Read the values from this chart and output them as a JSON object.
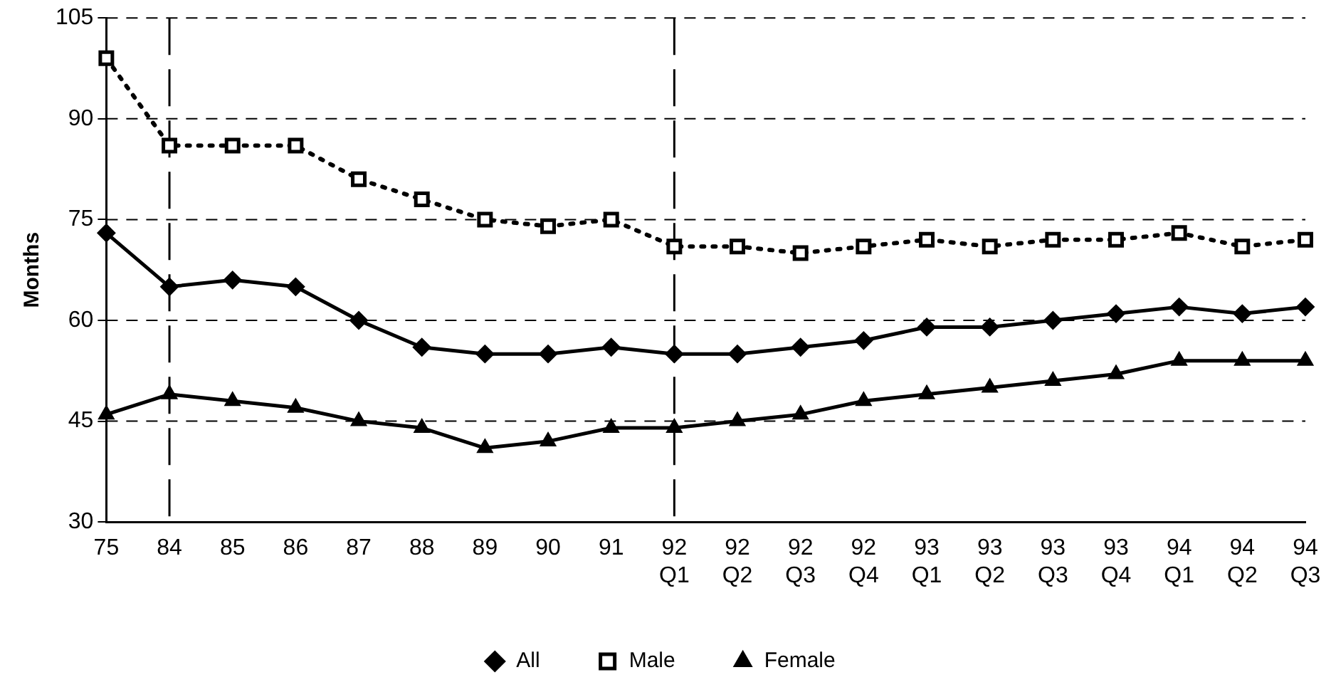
{
  "chart_data": {
    "type": "line",
    "ylabel": "Months",
    "categories": [
      "75",
      "84",
      "85",
      "86",
      "87",
      "88",
      "89",
      "90",
      "91",
      "92 Q1",
      "92 Q2",
      "92 Q3",
      "92 Q4",
      "93 Q1",
      "93 Q2",
      "93 Q3",
      "93 Q4",
      "94 Q1",
      "94 Q2",
      "94 Q3"
    ],
    "series": [
      {
        "name": "All",
        "color": "#000000",
        "marker": "diamond",
        "line_style": "solid",
        "values": [
          73,
          65,
          66,
          65,
          60,
          56,
          55,
          55,
          56,
          55,
          55,
          56,
          57,
          59,
          59,
          60,
          61,
          62,
          61,
          62
        ]
      },
      {
        "name": "Male",
        "color": "#000000",
        "marker": "square",
        "line_style": "dotted",
        "values": [
          99,
          86,
          86,
          86,
          81,
          78,
          75,
          74,
          75,
          71,
          71,
          70,
          71,
          72,
          71,
          72,
          72,
          73,
          71,
          72
        ]
      },
      {
        "name": "Female",
        "color": "#000000",
        "marker": "triangle",
        "line_style": "solid",
        "values": [
          46,
          49,
          48,
          47,
          45,
          44,
          41,
          42,
          44,
          44,
          45,
          46,
          48,
          49,
          50,
          51,
          52,
          54,
          54,
          54
        ]
      }
    ],
    "ylim": [
      30,
      105
    ],
    "yticks": [
      30,
      45,
      60,
      75,
      90,
      105
    ],
    "grid": "y",
    "legend": "bottom",
    "ref_lines": [
      {
        "axis": "x",
        "value": "84",
        "color": "#000000",
        "line_style": "dashed"
      },
      {
        "axis": "x",
        "value": "92 Q1",
        "color": "#000000",
        "line_style": "dashed"
      }
    ]
  }
}
